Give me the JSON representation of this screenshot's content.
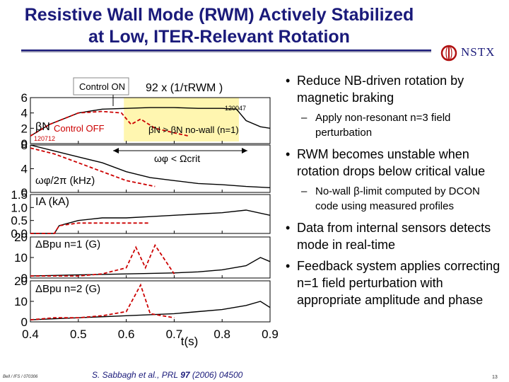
{
  "slide": {
    "title_line1": "Resistive Wall Mode (RWM) Actively Stabilized",
    "title_line2": "at Low, ITER-Relevant Rotation",
    "logo_text": "NSTX",
    "logo_icon": "nstx-logo-icon",
    "footer_left": "Bell / IFS / 070306",
    "footer_cite_pre": "S. Sabbagh et al., PRL ",
    "footer_cite_vol": "97",
    "footer_cite_post": " (2006) 04500",
    "page_number": "13",
    "colors": {
      "title": "#1a1a7a",
      "control_on": "#000000",
      "control_off": "#cc0000",
      "highlight": "#fff6b0"
    }
  },
  "bullets": [
    {
      "text": "Reduce NB-driven rotation by magnetic braking",
      "sub": [
        "Apply non-resonant n=3 field perturbation"
      ]
    },
    {
      "text": "RWM becomes unstable when rotation drops below critical value",
      "sub": [
        "No-wall β-limit computed by DCON code using measured profiles"
      ]
    },
    {
      "text": "Data from internal sensors detects mode in real-time",
      "sub": []
    },
    {
      "text": "Feedback system applies correcting n=1 field perturbation with appropriate amplitude and phase",
      "sub": []
    }
  ],
  "figure": {
    "control_on_label": "Control ON",
    "control_off_label": "Control OFF",
    "rwm_time_label": "92 x (1/τRWM )",
    "shot_on": "120047",
    "shot_off": "120712",
    "beta_label": "βN",
    "beta_condition": "βN > βN no-wall (n=1)",
    "omega_condition": "ωφ < Ωcrit",
    "omega_label": "ωφ/2π (kHz)",
    "ia_label": "IA (kA)",
    "bpu1_label": "ΔBpu n=1 (G)",
    "bpu2_label": "ΔBpu n=2 (G)",
    "xlabel": "t(s)",
    "x_ticks": [
      "0.4",
      "0.5",
      "0.6",
      "0.7",
      "0.8",
      "0.9"
    ]
  },
  "chart_data": {
    "type": "line",
    "xlabel": "t(s)",
    "xlim": [
      0.4,
      0.9
    ],
    "x_ticks": [
      0.4,
      0.5,
      0.6,
      0.7,
      0.8,
      0.9
    ],
    "panels": [
      {
        "ylabel": "βN",
        "ylim": [
          0,
          6
        ],
        "y_ticks": [
          0,
          2,
          4,
          6
        ],
        "series": [
          {
            "name": "Control ON",
            "color": "#000000",
            "x": [
              0.4,
              0.44,
              0.5,
              0.55,
              0.6,
              0.65,
              0.7,
              0.75,
              0.8,
              0.83,
              0.85,
              0.88,
              0.9
            ],
            "y": [
              1.0,
              2.5,
              4.0,
              4.5,
              4.6,
              4.7,
              4.7,
              4.6,
              4.6,
              4.5,
              3.0,
              2.2,
              2.0
            ]
          },
          {
            "name": "Control OFF",
            "color": "#cc0000",
            "x": [
              0.4,
              0.44,
              0.5,
              0.55,
              0.59,
              0.61,
              0.63,
              0.66,
              0.7,
              0.73
            ],
            "y": [
              1.0,
              2.5,
              4.0,
              4.2,
              4.0,
              2.5,
              3.2,
              2.0,
              1.4,
              1.0
            ]
          }
        ]
      },
      {
        "ylabel": "ωφ/2π (kHz)",
        "ylim": [
          0,
          8
        ],
        "y_ticks": [
          0,
          4,
          8
        ],
        "series": [
          {
            "name": "Control ON",
            "color": "#000000",
            "x": [
              0.4,
              0.45,
              0.5,
              0.55,
              0.6,
              0.65,
              0.7,
              0.75,
              0.8,
              0.85,
              0.9
            ],
            "y": [
              8.0,
              7.0,
              6.0,
              5.0,
              3.5,
              2.5,
              2.0,
              1.5,
              1.3,
              1.0,
              0.8
            ]
          },
          {
            "name": "Control OFF",
            "color": "#cc0000",
            "x": [
              0.4,
              0.45,
              0.5,
              0.55,
              0.6,
              0.63,
              0.66
            ],
            "y": [
              7.5,
              6.5,
              5.0,
              3.5,
              2.0,
              1.5,
              1.0
            ]
          }
        ]
      },
      {
        "ylabel": "IA (kA)",
        "ylim": [
          0,
          1.5
        ],
        "y_ticks": [
          0.0,
          0.5,
          1.0,
          1.5
        ],
        "series": [
          {
            "name": "Control ON",
            "color": "#000000",
            "x": [
              0.4,
              0.45,
              0.46,
              0.5,
              0.55,
              0.6,
              0.65,
              0.7,
              0.75,
              0.8,
              0.85,
              0.9
            ],
            "y": [
              0.0,
              0.0,
              0.3,
              0.5,
              0.6,
              0.6,
              0.65,
              0.7,
              0.75,
              0.8,
              0.9,
              0.7
            ]
          },
          {
            "name": "Control OFF",
            "color": "#cc0000",
            "x": [
              0.4,
              0.45,
              0.46,
              0.5,
              0.55,
              0.6,
              0.65
            ],
            "y": [
              0.0,
              0.0,
              0.3,
              0.4,
              0.4,
              0.4,
              0.4
            ]
          }
        ]
      },
      {
        "ylabel": "ΔBpu n=1 (G)",
        "ylim": [
          0,
          20
        ],
        "y_ticks": [
          0,
          10,
          20
        ],
        "series": [
          {
            "name": "Control ON",
            "color": "#000000",
            "x": [
              0.4,
              0.5,
              0.6,
              0.7,
              0.75,
              0.8,
              0.85,
              0.88,
              0.9
            ],
            "y": [
              1.0,
              1.5,
              2.0,
              2.5,
              3.0,
              4.0,
              6.0,
              10.0,
              8.0
            ]
          },
          {
            "name": "Control OFF",
            "color": "#cc0000",
            "x": [
              0.4,
              0.5,
              0.55,
              0.6,
              0.62,
              0.64,
              0.66,
              0.7
            ],
            "y": [
              1.0,
              1.0,
              2.0,
              5.0,
              15.0,
              5.0,
              16.0,
              2.0
            ]
          }
        ]
      },
      {
        "ylabel": "ΔBpu n=2 (G)",
        "ylim": [
          0,
          20
        ],
        "y_ticks": [
          0,
          10,
          20
        ],
        "series": [
          {
            "name": "Control ON",
            "color": "#000000",
            "x": [
              0.4,
              0.5,
              0.6,
              0.7,
              0.75,
              0.8,
              0.85,
              0.88,
              0.9
            ],
            "y": [
              1.0,
              2.0,
              3.0,
              4.0,
              5.0,
              6.0,
              8.0,
              10.0,
              7.0
            ]
          },
          {
            "name": "Control OFF",
            "color": "#cc0000",
            "x": [
              0.4,
              0.45,
              0.5,
              0.55,
              0.6,
              0.63,
              0.65,
              0.7
            ],
            "y": [
              1.0,
              2.0,
              2.0,
              3.0,
              5.0,
              18.0,
              4.0,
              2.0
            ]
          }
        ]
      }
    ]
  }
}
